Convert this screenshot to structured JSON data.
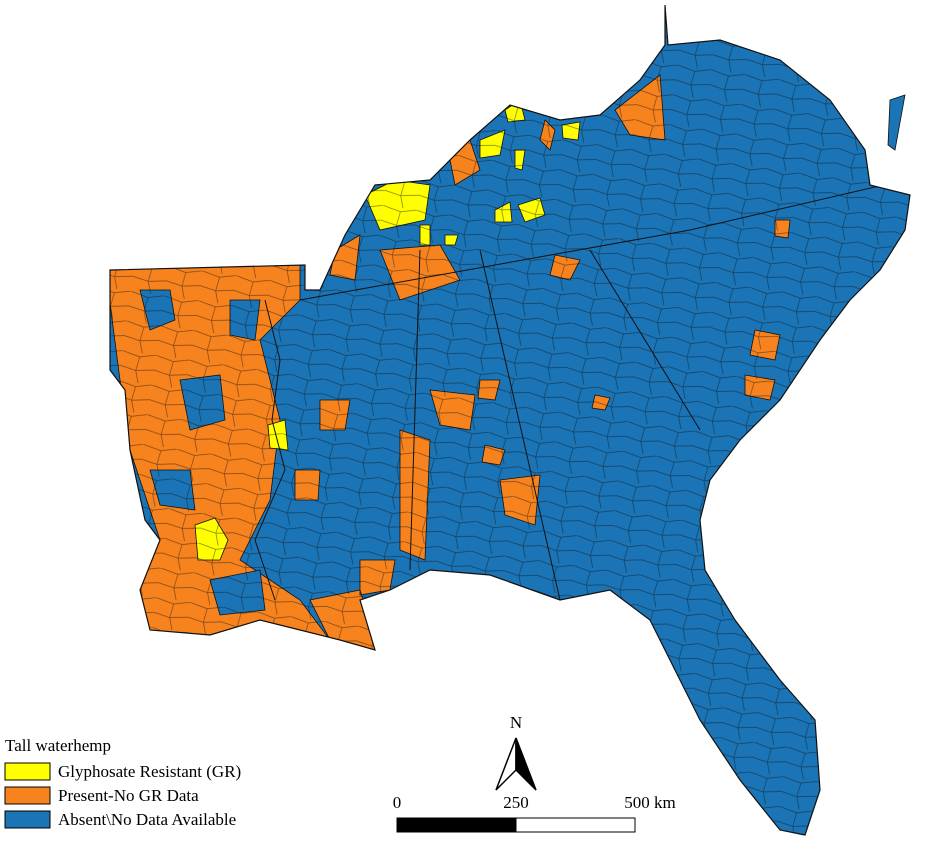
{
  "legend": {
    "title": "Tall waterhemp",
    "items": [
      {
        "label": "Glyphosate Resistant (GR)",
        "color": "#ffff00"
      },
      {
        "label": "Present-No GR Data",
        "color": "#f7831e"
      },
      {
        "label": "Absent\\No Data Available",
        "color": "#1a74b6"
      }
    ]
  },
  "north_arrow": {
    "label": "N"
  },
  "scale_bar": {
    "labels": [
      "0",
      "250",
      "500 km"
    ]
  }
}
